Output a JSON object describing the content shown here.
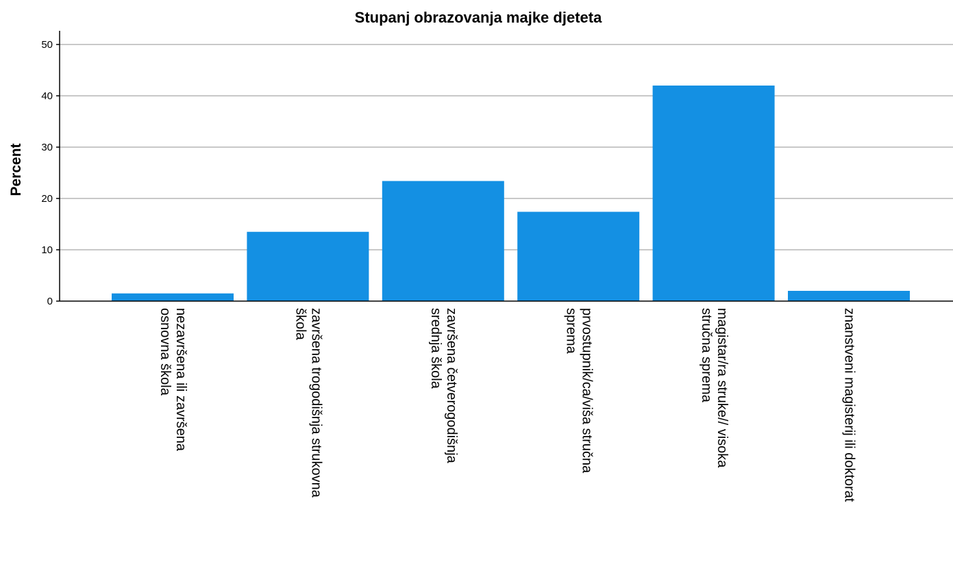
{
  "chart_data": {
    "type": "bar",
    "title": "Stupanj obrazovanja majke djeteta",
    "xlabel": "",
    "ylabel": "Percent",
    "ylim": [
      0,
      50
    ],
    "yticks": [
      0,
      10,
      20,
      30,
      40,
      50
    ],
    "grid": true,
    "bar_color": "#1490e3",
    "categories": [
      [
        "nezavršena ili završena",
        "osnovna škola"
      ],
      [
        "završena trogodišnja strukovna",
        "škola"
      ],
      [
        "završena četverogodišnja",
        "srednja škola"
      ],
      [
        "prvostupnik/ca/viša stručna",
        "sprema"
      ],
      [
        "magistar/ra struke// visoka",
        "stručna sprema"
      ],
      [
        "znanstveni magisterij ili doktorat"
      ]
    ],
    "values": [
      1.5,
      13.5,
      23.4,
      17.4,
      42.0,
      2.0
    ]
  }
}
